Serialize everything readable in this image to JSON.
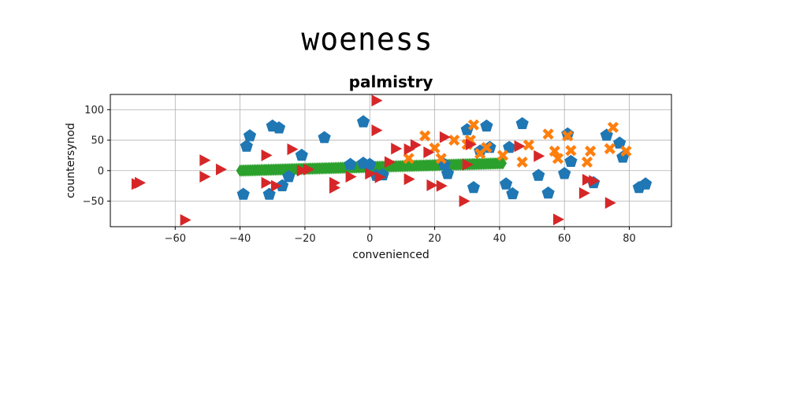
{
  "page_title": "woeness",
  "chart_data": {
    "type": "scatter",
    "title": "palmistry",
    "xlabel": "convenienced",
    "ylabel": "countersynod",
    "xlim": [
      -80,
      93
    ],
    "ylim": [
      -92,
      125
    ],
    "xticks": [
      -60,
      -40,
      -20,
      0,
      20,
      40,
      60,
      80
    ],
    "yticks": [
      -50,
      0,
      50,
      100
    ],
    "grid": true,
    "series": [
      {
        "color": "#1f77b4",
        "marker": "pentagon",
        "points": [
          [
            -39,
            -39
          ],
          [
            -38,
            40
          ],
          [
            -37,
            57
          ],
          [
            -31,
            -39
          ],
          [
            -30,
            73
          ],
          [
            -28,
            70
          ],
          [
            -27,
            -25
          ],
          [
            -25,
            -10
          ],
          [
            -21,
            25
          ],
          [
            -14,
            54
          ],
          [
            -6,
            10
          ],
          [
            -2,
            12
          ],
          [
            -2,
            80
          ],
          [
            0,
            10
          ],
          [
            2,
            -8
          ],
          [
            4,
            -7
          ],
          [
            23,
            10
          ],
          [
            24,
            -5
          ],
          [
            30,
            67
          ],
          [
            32,
            -28
          ],
          [
            34,
            32
          ],
          [
            36,
            73
          ],
          [
            37,
            38
          ],
          [
            42,
            -22
          ],
          [
            43,
            38
          ],
          [
            44,
            -38
          ],
          [
            47,
            77
          ],
          [
            52,
            -8
          ],
          [
            55,
            -37
          ],
          [
            60,
            -5
          ],
          [
            61,
            60
          ],
          [
            62,
            15
          ],
          [
            69,
            -20
          ],
          [
            73,
            58
          ],
          [
            77,
            45
          ],
          [
            78,
            22
          ],
          [
            83,
            -28
          ],
          [
            85,
            -22
          ]
        ]
      },
      {
        "color": "#ff7f0e",
        "marker": "x",
        "points": [
          [
            12,
            20
          ],
          [
            17,
            57
          ],
          [
            20,
            37
          ],
          [
            22,
            20
          ],
          [
            26,
            50
          ],
          [
            30,
            43
          ],
          [
            31,
            50
          ],
          [
            32,
            75
          ],
          [
            34,
            28
          ],
          [
            36,
            38
          ],
          [
            41,
            25
          ],
          [
            47,
            14
          ],
          [
            49,
            42
          ],
          [
            55,
            60
          ],
          [
            57,
            32
          ],
          [
            58,
            20
          ],
          [
            61,
            57
          ],
          [
            62,
            33
          ],
          [
            67,
            14
          ],
          [
            68,
            32
          ],
          [
            74,
            36
          ],
          [
            75,
            71
          ],
          [
            79,
            32
          ]
        ]
      },
      {
        "color": "#d62728",
        "marker": "triangle-right",
        "points": [
          [
            -72,
            -22
          ],
          [
            -71,
            -20
          ],
          [
            -57,
            -81
          ],
          [
            -51,
            17
          ],
          [
            -51,
            -10
          ],
          [
            -46,
            2
          ],
          [
            -32,
            25
          ],
          [
            -32,
            -20
          ],
          [
            -29,
            -25
          ],
          [
            -24,
            35
          ],
          [
            -21,
            0
          ],
          [
            -19,
            2
          ],
          [
            -11,
            -20
          ],
          [
            -11,
            -28
          ],
          [
            -6,
            -10
          ],
          [
            0,
            -5
          ],
          [
            2,
            115
          ],
          [
            2,
            66
          ],
          [
            3,
            -11
          ],
          [
            6,
            14
          ],
          [
            8,
            36
          ],
          [
            12,
            -14
          ],
          [
            12,
            35
          ],
          [
            14,
            42
          ],
          [
            18,
            30
          ],
          [
            19,
            -24
          ],
          [
            22,
            -25
          ],
          [
            23,
            55
          ],
          [
            29,
            -50
          ],
          [
            30,
            10
          ],
          [
            31,
            43
          ],
          [
            46,
            40
          ],
          [
            52,
            24
          ],
          [
            58,
            -80
          ],
          [
            66,
            -37
          ],
          [
            67,
            -15
          ],
          [
            69,
            -17
          ],
          [
            74,
            -53
          ]
        ]
      },
      {
        "color": "#2ca02c",
        "marker": "diamond",
        "line_from": [
          -40,
          0
        ],
        "line_to": [
          41,
          12
        ],
        "count": 150
      }
    ]
  }
}
